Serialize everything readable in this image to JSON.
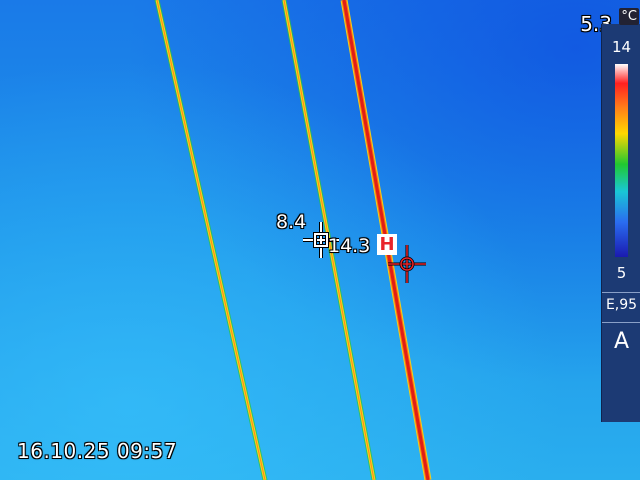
{
  "readouts": {
    "top_temperature": "5.3",
    "spot_temperature": "8.4",
    "hot_temperature": "14.3",
    "hot_marker_label": "H"
  },
  "scale": {
    "unit": "°C",
    "max": "14",
    "min": "5",
    "emissivity": "E,95",
    "mode": "A"
  },
  "timestamp": "16.10.25 09:57",
  "colors": {
    "wire_hot": "#e82418",
    "wire_warm": "#f2c21a",
    "background": "#1f8ce6"
  }
}
